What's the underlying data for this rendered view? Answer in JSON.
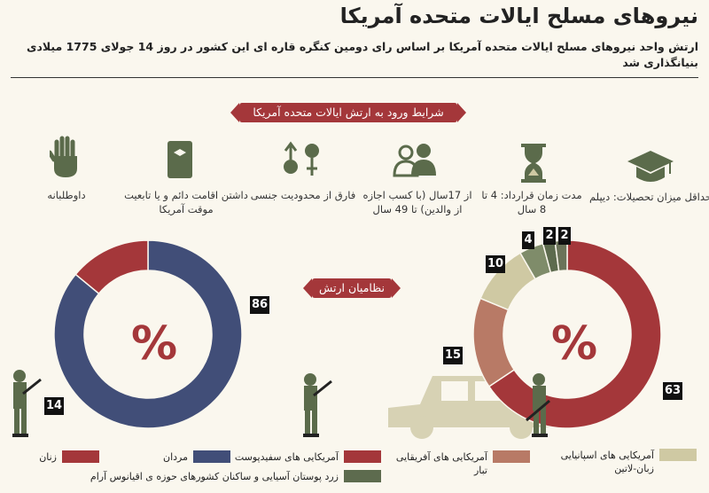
{
  "header": {
    "title": "نیروهای مسلح  ایالات متحده آمریکا",
    "subtitle": "ارتش واحد نیروهای مسلح ایالات متحده آمریکا بر اساس رای دومین کنگره قاره ای این کشور در روز 14 جولای 1775 میلادی بنیانگذاری شد"
  },
  "requirements": {
    "banner": "شرایط ورود به ارتش ایالات متحده آمریکا",
    "items": [
      {
        "icon": "graduation-cap-icon",
        "label": "حداقل میزان تحصیلات: دیپلم"
      },
      {
        "icon": "hourglass-icon",
        "label": "مدت زمان قرارداد: 4 تا 8 سال"
      },
      {
        "icon": "people-icon",
        "label": "از 17سال (با کسب اجازه از والدین) تا 49 سال"
      },
      {
        "icon": "gender-icon",
        "label": "فارق از محدودیت جنسی"
      },
      {
        "icon": "id-card-icon",
        "label": "داشتن اقامت دائم و یا تابعیت موقت آمریکا"
      },
      {
        "icon": "hand-icon",
        "label": "داوطلبانه"
      }
    ]
  },
  "military": {
    "banner": "نظامیان ارتش"
  },
  "colors": {
    "red": "#a4373a",
    "navy": "#414e78",
    "salmon": "#b87a66",
    "beige": "#cfc9a3",
    "olive": "#7f8c6a",
    "darkolive": "#5d6b4e"
  },
  "chart_data": [
    {
      "type": "pie",
      "center_label": "%",
      "labels": [
        "مردان",
        "زنان"
      ],
      "values": [
        86,
        14
      ],
      "colors": [
        "#414e78",
        "#a4373a"
      ]
    },
    {
      "type": "pie",
      "center_label": "%",
      "labels": [
        "آمریکایی های سفیدپوست",
        "آمریکایی های آفریقایی تبار",
        "آمریکایی های اسپانیایی زبان-لاتین",
        "زرد پوستان آسیایی و ساکنان کشورهای حوزه ی اقیانوس آرام",
        "",
        ""
      ],
      "values": [
        63,
        15,
        10,
        4,
        2,
        2
      ],
      "colors": [
        "#a4373a",
        "#b87a66",
        "#cfc9a3",
        "#7f8c6a",
        "#5d6b4e",
        "#6b7359"
      ]
    }
  ],
  "legend": {
    "women": "زنان",
    "men": "مردان",
    "white": "آمریکایی های سفیدپوست",
    "african": "آمریکایی های آفریقایی تبار",
    "hispanic": "آمریکایی های اسپانیایی زبان-لاتین",
    "asian": "زرد پوستان آسیایی و ساکنان کشورهای حوزه ی اقیانوس آرام"
  }
}
